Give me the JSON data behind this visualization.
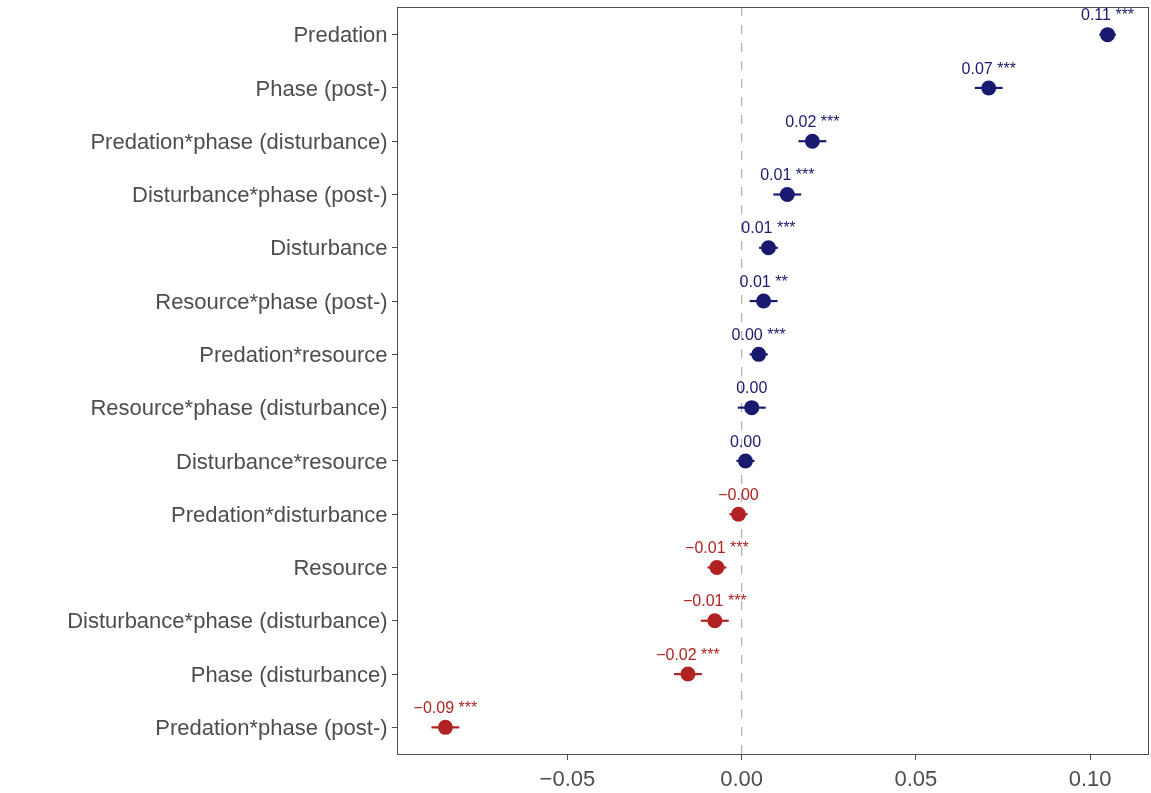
{
  "chart_data": {
    "type": "scatter",
    "orientation": "horizontal",
    "categories": [
      "Predation",
      "Phase (post-)",
      "Predation*phase (disturbance)",
      "Disturbance*phase (post-)",
      "Disturbance",
      "Resource*phase (post-)",
      "Predation*resource",
      "Resource*phase (disturbance)",
      "Disturbance*resource",
      "Predation*disturbance",
      "Resource",
      "Disturbance*phase (disturbance)",
      "Phase (disturbance)",
      "Predation*phase (post-)"
    ],
    "values": [
      0.105,
      0.0709,
      0.0203,
      0.0131,
      0.0077,
      0.0063,
      0.0049,
      0.0029,
      0.0011,
      -0.0009,
      -0.0071,
      -0.0077,
      -0.0154,
      -0.085
    ],
    "errors": [
      0.0024,
      0.004,
      0.004,
      0.004,
      0.0027,
      0.004,
      0.0026,
      0.004,
      0.0026,
      0.0026,
      0.0027,
      0.004,
      0.004,
      0.004
    ],
    "colors": [
      "#191970",
      "#191970",
      "#191970",
      "#191970",
      "#191970",
      "#191970",
      "#191970",
      "#191970",
      "#191970",
      "#b22222",
      "#b22222",
      "#b22222",
      "#b22222",
      "#b22222"
    ],
    "value_labels": [
      "0.11 ***",
      "0.07 ***",
      "0.02 ***",
      "0.01 ***",
      "0.01 ***",
      "0.01 **",
      "0.00 ***",
      "0.00",
      "0.00",
      "−0.00",
      "−0.01 ***",
      "−0.01 ***",
      "−0.02 ***",
      "−0.09 ***"
    ],
    "xlim": [
      -0.0986,
      0.1166
    ],
    "xticks": [
      {
        "value": -0.05,
        "label": "−0.05"
      },
      {
        "value": 0,
        "label": "0.00"
      },
      {
        "value": 0.05,
        "label": "0.05"
      },
      {
        "value": 0.1,
        "label": "0.10"
      }
    ],
    "ref_lines": [
      {
        "axis": "x",
        "value": 0,
        "color": "#b3b3b3",
        "line_style": "dashed"
      }
    ],
    "marker": "circle",
    "grid": false
  }
}
